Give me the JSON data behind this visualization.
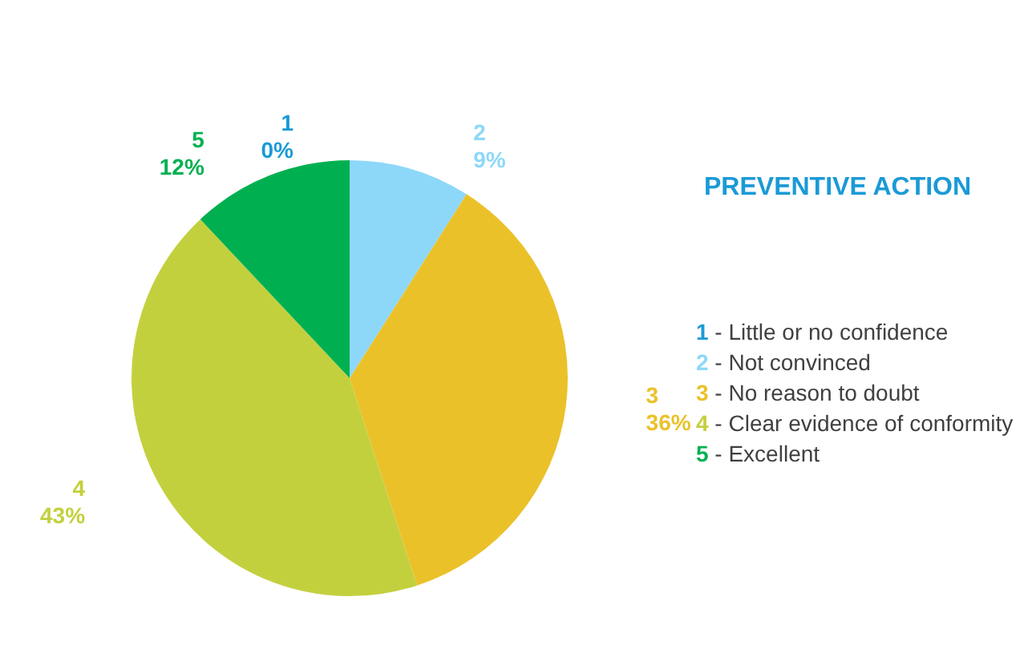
{
  "chart_data": {
    "type": "pie",
    "title": "PREVENTIVE ACTION",
    "categories": [
      "1",
      "2",
      "3",
      "4",
      "5"
    ],
    "values": [
      0,
      9,
      36,
      43,
      12
    ],
    "value_labels": [
      "0%",
      "9%",
      "36%",
      "43%",
      "12%"
    ],
    "colors": [
      "#1a9ad6",
      "#8dd8f8",
      "#ebc12a",
      "#c3d03e",
      "#00b050"
    ],
    "annotations": [
      "- Little or no confidence",
      "- Not convinced",
      "- No reason to doubt",
      "- Clear evidence of conformity",
      "- Excellent"
    ]
  }
}
